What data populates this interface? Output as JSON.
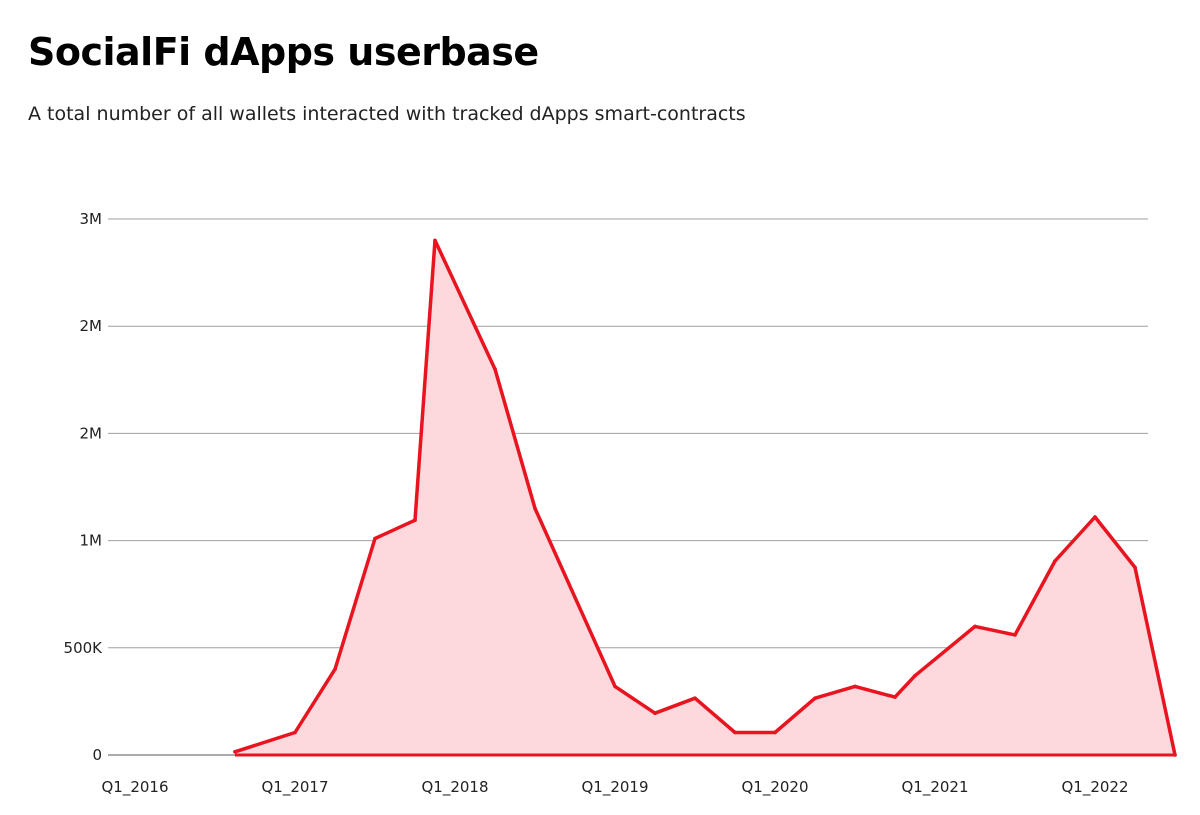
{
  "chart_data": {
    "type": "area",
    "title": "SocialFi dApps userbase",
    "subtitle": "A total number of all wallets interacted with tracked dApps smart-contracts",
    "xlabel": "",
    "ylabel": "",
    "x_ticks": [
      "Q1_2016",
      "Q1_2017",
      "Q1_2018",
      "Q1_2019",
      "Q1_2020",
      "Q1_2021",
      "Q1_2022"
    ],
    "y_ticks": [
      {
        "value": 0,
        "label": "0"
      },
      {
        "value": 500000,
        "label": "500K"
      },
      {
        "value": 1000000,
        "label": "1M"
      },
      {
        "value": 1500000,
        "label": "2M"
      },
      {
        "value": 2000000,
        "label": "2M"
      },
      {
        "value": 2500000,
        "label": "3M"
      }
    ],
    "ylim": [
      0,
      2500000
    ],
    "xlim": [
      "Q1_2016",
      "Q2_2022"
    ],
    "grid": true,
    "legend": "none",
    "colors": {
      "line": "#e8141f",
      "fill": "#fdd9dd",
      "grid": "#a0a0a0"
    },
    "x": [
      "Q4_2016",
      "Q1_2017",
      "Q2_2017",
      "Q3_2017",
      "Q4_2017",
      "Q1_2018",
      "Q2_2018",
      "Q3_2018",
      "Q4_2018",
      "Q1_2019",
      "Q2_2019",
      "Q3_2019",
      "Q4_2019",
      "Q1_2020",
      "Q2_2020",
      "Q3_2020",
      "Q4_2020",
      "Q1_2021",
      "Q2_2021",
      "Q3_2021",
      "Q4_2021",
      "Q1_2022",
      "Q2_2022"
    ],
    "x_index": [
      2.5,
      4,
      5,
      6,
      7,
      7.5,
      9,
      10,
      12,
      13,
      14,
      15,
      16,
      17,
      18,
      19,
      19.5,
      21,
      22,
      23,
      24,
      25,
      26
    ],
    "values": [
      15000,
      105000,
      400000,
      1010000,
      1095000,
      2400000,
      1800000,
      1150000,
      320000,
      195000,
      265000,
      105000,
      105000,
      265000,
      320000,
      270000,
      370000,
      600000,
      560000,
      905000,
      1110000,
      875000,
      0
    ]
  }
}
